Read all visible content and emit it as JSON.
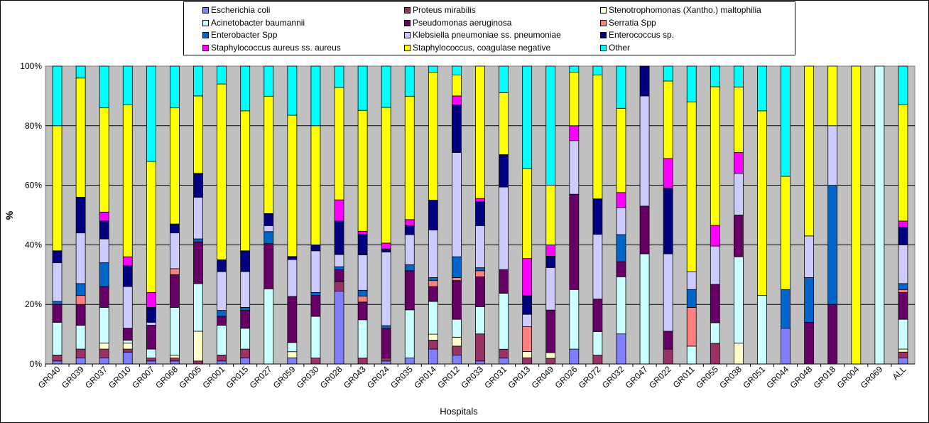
{
  "chart_data": {
    "type": "bar",
    "stacked": "percent",
    "xlabel": "Hospitals",
    "ylabel": "%",
    "ylim": [
      0,
      100
    ],
    "yticks": [
      "0%",
      "20%",
      "40%",
      "60%",
      "80%",
      "100%"
    ],
    "grid": true,
    "plot_background": "#c0c0c0",
    "legend_position": "top",
    "categories": [
      "GR040",
      "GR039",
      "GR037",
      "GR010",
      "GR007",
      "GR068",
      "GR005",
      "GR001",
      "GR015",
      "GR027",
      "GR059",
      "GR030",
      "GR028",
      "GR043",
      "GR024",
      "GR035",
      "GR014",
      "GR012",
      "GR033",
      "GR031",
      "GR013",
      "GR049",
      "GR026",
      "GR072",
      "GR032",
      "GR047",
      "GR022",
      "GR011",
      "GR055",
      "GR038",
      "GR051",
      "GR044",
      "GR048",
      "GR018",
      "GR004",
      "GR069",
      "ALL"
    ],
    "series": [
      {
        "name": "Escherichia coli",
        "color": "#8080ff",
        "values": [
          1,
          2,
          2,
          4,
          1,
          1,
          0,
          1,
          2,
          0,
          2,
          0,
          24,
          0,
          1,
          2,
          5,
          3,
          1,
          2,
          0,
          0,
          5,
          0,
          10,
          0,
          0,
          0,
          0,
          0,
          0,
          12,
          0,
          0,
          0,
          0,
          2
        ]
      },
      {
        "name": "Proteus mirabilis",
        "color": "#993366",
        "values": [
          2,
          3,
          3,
          1,
          1,
          1,
          1,
          2,
          3,
          0,
          0,
          2,
          3,
          2,
          1,
          0,
          3,
          3,
          9,
          3,
          2,
          2,
          0,
          3,
          0,
          0,
          5,
          0,
          7,
          0,
          0,
          0,
          0,
          0,
          0,
          0,
          2
        ]
      },
      {
        "name": "Stenotrophomonas (Xantho.) maltophilia",
        "color": "#ffffcc",
        "values": [
          0,
          0,
          2,
          2,
          0,
          1,
          10,
          0,
          0,
          0,
          2,
          0,
          0,
          0,
          0,
          0,
          2,
          3,
          0,
          0,
          2,
          2,
          0,
          0,
          0,
          0,
          0,
          0,
          0,
          7,
          0,
          0,
          0,
          0,
          0,
          0,
          1
        ]
      },
      {
        "name": "Acinetobacter baumannii",
        "color": "#ccffff",
        "values": [
          11,
          8,
          12,
          1,
          3,
          16,
          16,
          10,
          7,
          25,
          3,
          14,
          0,
          13,
          0,
          16,
          11,
          6,
          9,
          19,
          0,
          0,
          20,
          8,
          19,
          37,
          0,
          6,
          7,
          29,
          23,
          0,
          0,
          0,
          0,
          100,
          10
        ]
      },
      {
        "name": "Pseudomonas aeruginosa",
        "color": "#660066",
        "values": [
          6,
          7,
          7,
          4,
          8,
          11,
          14,
          3,
          6,
          15,
          15,
          7,
          4,
          6,
          10,
          13,
          5,
          13,
          10,
          8,
          0,
          15,
          32,
          11,
          5,
          16,
          6,
          0,
          13,
          14,
          0,
          0,
          14,
          20,
          0,
          0,
          9
        ]
      },
      {
        "name": "Serratia Spp",
        "color": "#ff8080",
        "values": [
          0,
          3,
          0,
          0,
          0,
          2,
          0,
          0,
          0,
          0,
          0,
          0,
          0,
          2,
          0,
          0,
          2,
          1,
          2,
          0,
          8,
          0,
          0,
          0,
          0,
          0,
          0,
          13,
          0,
          0,
          0,
          0,
          0,
          0,
          0,
          0,
          1
        ]
      },
      {
        "name": "Enterobacter Spp",
        "color": "#0066cc",
        "values": [
          1,
          4,
          8,
          0,
          0,
          0,
          1,
          2,
          1,
          4,
          0,
          1,
          1,
          2,
          1,
          2,
          1,
          7,
          1,
          0,
          0,
          0,
          0,
          0,
          9,
          0,
          0,
          6,
          0,
          0,
          0,
          13,
          15,
          40,
          0,
          0,
          2
        ]
      },
      {
        "name": "Klebsiella pneumoniae ss. pneumoniae",
        "color": "#ccccff",
        "values": [
          13,
          17,
          8,
          14,
          1,
          12,
          14,
          13,
          12,
          2,
          12,
          14,
          4,
          12,
          25,
          10,
          16,
          35,
          14,
          28,
          4,
          15,
          18,
          22,
          9,
          37,
          26,
          6,
          13,
          14,
          0,
          0,
          14,
          20,
          0,
          0,
          13
        ]
      },
      {
        "name": "Enterococcus sp.",
        "color": "#000080",
        "values": [
          4,
          12,
          6,
          7,
          5,
          3,
          8,
          4,
          7,
          4,
          1,
          2,
          11,
          7,
          1,
          3,
          10,
          16,
          8,
          11,
          6,
          4,
          0,
          12,
          0,
          10,
          22,
          0,
          0,
          0,
          0,
          0,
          0,
          0,
          0,
          0,
          6
        ]
      },
      {
        "name": "Staphylococcus aureus ss. aureus",
        "color": "#ff00ff",
        "values": [
          0,
          0,
          3,
          3,
          5,
          0,
          0,
          0,
          0,
          0,
          0,
          0,
          7,
          1,
          2,
          2,
          0,
          3,
          1,
          0,
          12,
          4,
          5,
          0,
          5,
          0,
          10,
          0,
          7,
          7,
          0,
          0,
          0,
          0,
          0,
          0,
          2
        ]
      },
      {
        "name": "Staphylococcus, coagulase negative",
        "color": "#ffff00",
        "values": [
          42,
          40,
          35,
          51,
          44,
          39,
          26,
          59,
          47,
          39,
          46,
          40,
          37,
          41,
          46,
          41,
          43,
          7,
          44,
          21,
          29,
          21,
          18,
          42,
          28,
          0,
          26,
          57,
          47,
          22,
          62,
          38,
          57,
          20,
          100,
          0,
          39
        ]
      },
      {
        "name": "Other",
        "color": "#00ffff",
        "values": [
          20,
          4,
          14,
          13,
          32,
          14,
          10,
          6,
          15,
          10,
          16,
          20,
          7,
          15,
          14,
          10,
          2,
          3,
          0,
          9,
          33,
          42,
          2,
          3,
          14,
          0,
          5,
          12,
          7,
          7,
          15,
          37,
          0,
          0,
          0,
          0,
          13
        ]
      }
    ]
  }
}
